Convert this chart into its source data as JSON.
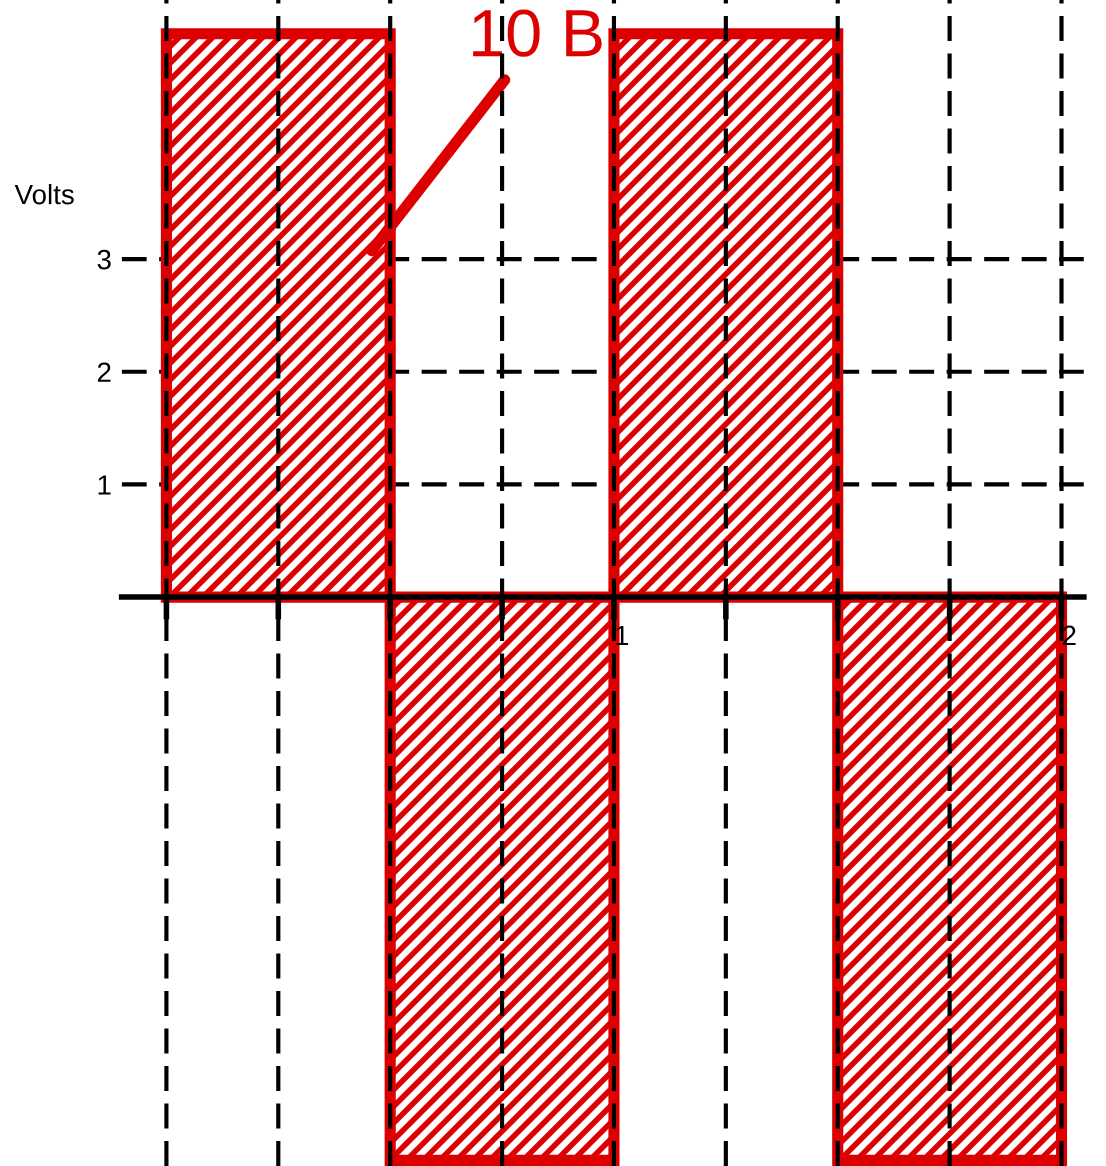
{
  "chart_data": {
    "type": "bar",
    "ylabel": "Volts",
    "x": [
      0.25,
      0.75,
      1.25,
      1.75
    ],
    "values": [
      5,
      -5,
      5,
      -5
    ],
    "color": "#dd0000",
    "xlim": [
      -0.1,
      2.05
    ],
    "ylim": [
      -5.05,
      5.3
    ],
    "xticks": [
      {
        "value": 0,
        "label": null
      },
      {
        "value": 0.25,
        "label": null
      },
      {
        "value": 0.5,
        "label": null
      },
      {
        "value": 0.75,
        "label": null
      },
      1,
      {
        "value": 1.25,
        "label": null
      },
      {
        "value": 1.5,
        "label": null
      },
      {
        "value": 1.75,
        "label": null
      },
      2
    ],
    "yticks": [
      1,
      2,
      3
    ],
    "grid": true,
    "annotations": [
      "10 B"
    ]
  }
}
